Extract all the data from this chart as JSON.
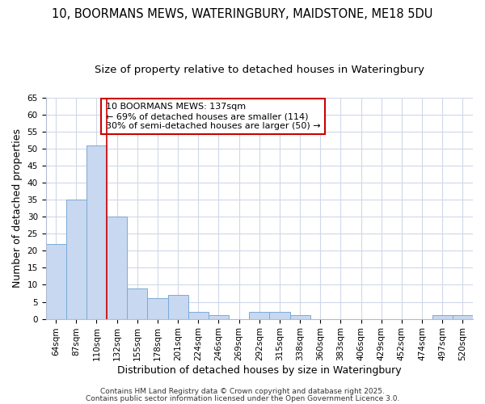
{
  "title": "10, BOORMANS MEWS, WATERINGBURY, MAIDSTONE, ME18 5DU",
  "subtitle": "Size of property relative to detached houses in Wateringbury",
  "xlabel": "Distribution of detached houses by size in Wateringbury",
  "ylabel": "Number of detached properties",
  "categories": [
    "64sqm",
    "87sqm",
    "110sqm",
    "132sqm",
    "155sqm",
    "178sqm",
    "201sqm",
    "224sqm",
    "246sqm",
    "269sqm",
    "292sqm",
    "315sqm",
    "338sqm",
    "360sqm",
    "383sqm",
    "406sqm",
    "429sqm",
    "452sqm",
    "474sqm",
    "497sqm",
    "520sqm"
  ],
  "values": [
    22,
    35,
    51,
    30,
    9,
    6,
    7,
    2,
    1,
    0,
    2,
    2,
    1,
    0,
    0,
    0,
    0,
    0,
    0,
    1,
    1
  ],
  "bar_color": "#c8d8f0",
  "bar_edge_color": "#7aaad8",
  "bg_color": "#ffffff",
  "grid_color": "#d0d8e8",
  "vline_color": "#cc0000",
  "annotation_text": "10 BOORMANS MEWS: 137sqm\n← 69% of detached houses are smaller (114)\n30% of semi-detached houses are larger (50) →",
  "annotation_box_color": "#cc0000",
  "ylim": [
    0,
    65
  ],
  "yticks": [
    0,
    5,
    10,
    15,
    20,
    25,
    30,
    35,
    40,
    45,
    50,
    55,
    60,
    65
  ],
  "footer1": "Contains HM Land Registry data © Crown copyright and database right 2025.",
  "footer2": "Contains public sector information licensed under the Open Government Licence 3.0.",
  "title_fontsize": 10.5,
  "subtitle_fontsize": 9.5,
  "axis_label_fontsize": 9,
  "tick_fontsize": 7.5,
  "annotation_fontsize": 8,
  "footer_fontsize": 6.5
}
